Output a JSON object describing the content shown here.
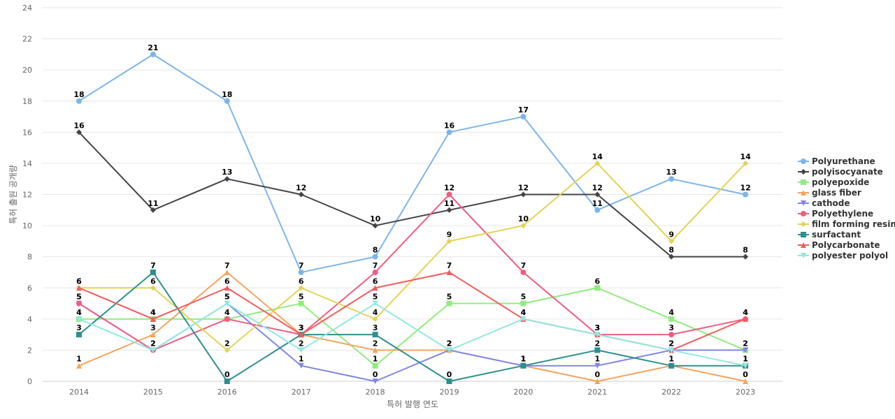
{
  "chart_data": {
    "type": "line",
    "title": "",
    "xlabel": "특허 발행 연도",
    "ylabel": "특허 출원 공개량",
    "categories": [
      "2014",
      "2015",
      "2016",
      "2017",
      "2018",
      "2019",
      "2020",
      "2021",
      "2022",
      "2023"
    ],
    "ylim": [
      0,
      24
    ],
    "yticks": [
      0,
      2,
      4,
      6,
      8,
      10,
      12,
      14,
      16,
      18,
      20,
      22,
      24
    ],
    "grid": true,
    "legend_position": "right",
    "series": [
      {
        "name": "Polyurethane",
        "color": "#7cb5ec",
        "marker": "circle",
        "values": [
          18,
          21,
          18,
          7,
          8,
          16,
          17,
          11,
          13,
          12
        ]
      },
      {
        "name": "polyisocyanate",
        "color": "#434348",
        "marker": "diamond",
        "values": [
          16,
          11,
          13,
          12,
          10,
          11,
          12,
          12,
          8,
          8
        ]
      },
      {
        "name": "polyepoxide",
        "color": "#90ed7d",
        "marker": "square",
        "values": [
          4,
          4,
          4,
          5,
          1,
          5,
          5,
          6,
          4,
          2
        ]
      },
      {
        "name": "glass fiber",
        "color": "#f7a35c",
        "marker": "triangle",
        "values": [
          1,
          3,
          7,
          3,
          2,
          2,
          1,
          0,
          1,
          0
        ]
      },
      {
        "name": "cathode",
        "color": "#8085e9",
        "marker": "triangle-down",
        "values": [
          5,
          2,
          5,
          1,
          0,
          2,
          1,
          1,
          2,
          2
        ]
      },
      {
        "name": "Polyethylene",
        "color": "#f15c80",
        "marker": "circle",
        "values": [
          5,
          2,
          4,
          3,
          7,
          12,
          7,
          3,
          3,
          4
        ]
      },
      {
        "name": "film forming resin",
        "color": "#e4d354",
        "marker": "diamond",
        "values": [
          6,
          6,
          2,
          6,
          4,
          9,
          10,
          14,
          9,
          14
        ]
      },
      {
        "name": "surfactant",
        "color": "#2b908f",
        "marker": "square",
        "values": [
          3,
          7,
          0,
          3,
          3,
          0,
          1,
          2,
          1,
          1
        ]
      },
      {
        "name": "Polycarbonate",
        "color": "#f45b5b",
        "marker": "triangle",
        "values": [
          6,
          4,
          6,
          3,
          6,
          7,
          4,
          3,
          2,
          4
        ]
      },
      {
        "name": "polyester polyol",
        "color": "#91e8e1",
        "marker": "triangle-down",
        "values": [
          4,
          2,
          5,
          2,
          5,
          2,
          4,
          3,
          2,
          1
        ]
      }
    ]
  }
}
